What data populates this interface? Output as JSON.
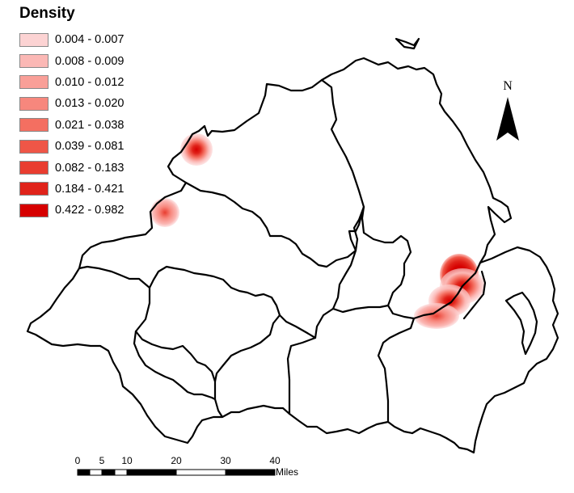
{
  "legend": {
    "title": "Density",
    "classes": [
      {
        "label": "0.004 - 0.007",
        "color": "#fcd3d3"
      },
      {
        "label": "0.008 - 0.009",
        "color": "#fbb8b5"
      },
      {
        "label": "0.010 - 0.012",
        "color": "#f99f98"
      },
      {
        "label": "0.013 - 0.020",
        "color": "#f7877d"
      },
      {
        "label": "0.021 - 0.038",
        "color": "#f46f61"
      },
      {
        "label": "0.039 - 0.081",
        "color": "#ef5647"
      },
      {
        "label": "0.082 - 0.183",
        "color": "#e93d30"
      },
      {
        "label": "0.184 - 0.421",
        "color": "#e0231a"
      },
      {
        "label": "0.422 - 0.982",
        "color": "#d60000"
      }
    ]
  },
  "north_arrow": {
    "letter": "N"
  },
  "scale_bar": {
    "ticks": [
      "0",
      "5",
      "10",
      "20",
      "30",
      "40"
    ],
    "units": "Miles"
  },
  "hotspots": [
    {
      "name": "north-west-hotspot",
      "peak_class": 8
    },
    {
      "name": "west-hotspot",
      "peak_class": 5
    },
    {
      "name": "east-hotspot-north",
      "peak_class": 9
    },
    {
      "name": "east-hotspot-middle",
      "peak_class": 7
    },
    {
      "name": "east-hotspot-south",
      "peak_class": 5
    }
  ]
}
